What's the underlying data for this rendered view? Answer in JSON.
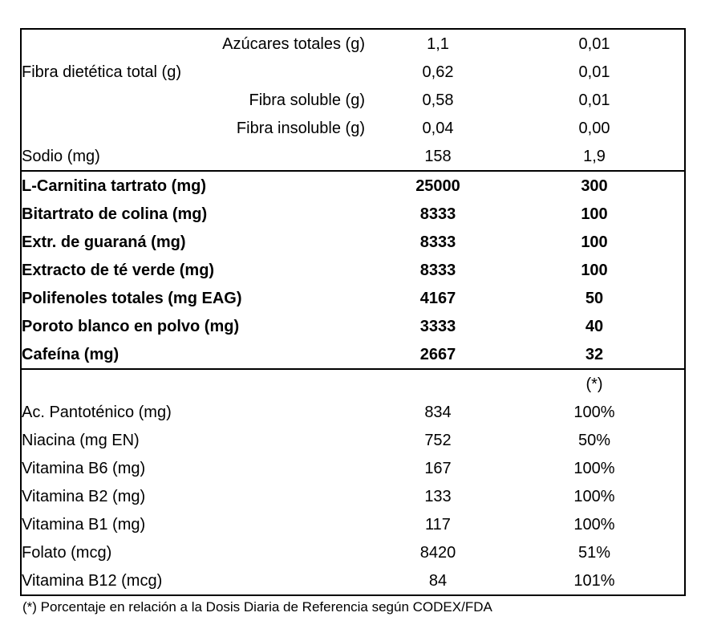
{
  "colors": {
    "background": "#ffffff",
    "text": "#000000",
    "border": "#000000"
  },
  "footnote": "(*) Porcentaje en relación a la Dosis Diaria de Referencia según CODEX/FDA",
  "table": {
    "sections": [
      {
        "name": "fibers-sugars-sodium",
        "rows": [
          {
            "label": "Azúcares totales (g)",
            "value1": "1,1",
            "value2": "0,01",
            "align": "right",
            "bold": false
          },
          {
            "label": "Fibra dietética total (g)",
            "value1": "0,62",
            "value2": "0,01",
            "align": "left",
            "bold": false
          },
          {
            "label": "Fibra soluble (g)",
            "value1": "0,58",
            "value2": "0,01",
            "align": "right",
            "bold": false
          },
          {
            "label": "Fibra insoluble (g)",
            "value1": "0,04",
            "value2": "0,00",
            "align": "right",
            "bold": false
          },
          {
            "label": "Sodio (mg)",
            "value1": "158",
            "value2": "1,9",
            "align": "left",
            "bold": false
          }
        ]
      },
      {
        "name": "active-ingredients",
        "rows": [
          {
            "label": "L-Carnitina tartrato (mg)",
            "value1": "25000",
            "value2": "300",
            "align": "left",
            "bold": true
          },
          {
            "label": "Bitartrato de colina (mg)",
            "value1": "8333",
            "value2": "100",
            "align": "left",
            "bold": true
          },
          {
            "label": "Extr. de guaraná (mg)",
            "value1": "8333",
            "value2": "100",
            "align": "left",
            "bold": true
          },
          {
            "label": "Extracto de té verde (mg)",
            "value1": "8333",
            "value2": "100",
            "align": "left",
            "bold": true
          },
          {
            "label": "Polifenoles totales (mg EAG)",
            "value1": "4167",
            "value2": "50",
            "align": "left",
            "bold": true
          },
          {
            "label": "Poroto blanco en polvo (mg)",
            "value1": "3333",
            "value2": "40",
            "align": "left",
            "bold": true
          },
          {
            "label": "Cafeína (mg)",
            "value1": "2667",
            "value2": "32",
            "align": "left",
            "bold": true
          }
        ]
      },
      {
        "name": "vitamins",
        "rows": [
          {
            "label": "",
            "value1": "",
            "value2": "(*)",
            "align": "left",
            "bold": false
          },
          {
            "label": "Ac. Pantoténico (mg)",
            "value1": "834",
            "value2": "100%",
            "align": "left",
            "bold": false
          },
          {
            "label": "Niacina (mg EN)",
            "value1": "752",
            "value2": "50%",
            "align": "left",
            "bold": false
          },
          {
            "label": "Vitamina B6 (mg)",
            "value1": "167",
            "value2": "100%",
            "align": "left",
            "bold": false
          },
          {
            "label": "Vitamina B2 (mg)",
            "value1": "133",
            "value2": "100%",
            "align": "left",
            "bold": false
          },
          {
            "label": "Vitamina B1 (mg)",
            "value1": "117",
            "value2": "100%",
            "align": "left",
            "bold": false
          },
          {
            "label": "Folato (mcg)",
            "value1": "8420",
            "value2": "51%",
            "align": "left",
            "bold": false
          },
          {
            "label": "Vitamina B12 (mcg)",
            "value1": "84",
            "value2": "101%",
            "align": "left",
            "bold": false
          }
        ]
      }
    ]
  }
}
